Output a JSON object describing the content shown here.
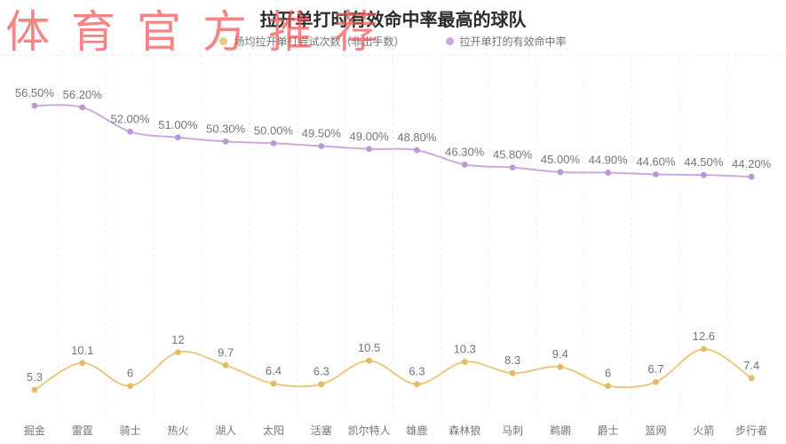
{
  "watermark": "体育官方推荐",
  "header": {
    "title": "拉开单打时有效命中率最高的球队"
  },
  "chart_data": {
    "type": "line",
    "title": "拉开单打时有效命中率最高的球队",
    "legend_position": "top",
    "grid": "vertical-dashed",
    "data_labels": "all-points",
    "background": "#ffffff",
    "categories": [
      "掘金",
      "雷霆",
      "骑士",
      "热火",
      "湖人",
      "太阳",
      "活塞",
      "凯尔特人",
      "雄鹿",
      "森林狼",
      "马刺",
      "鹈鹕",
      "爵士",
      "篮网",
      "火箭",
      "步行者"
    ],
    "series": [
      {
        "name": "场均拉开单打尝试次数（非出手数）",
        "type": "line",
        "smooth": true,
        "color": "#ecc87d",
        "marker_color": "#e5ba64",
        "values": [
          5.3,
          10.1,
          6,
          12,
          9.7,
          6.4,
          6.3,
          10.5,
          6.3,
          10.3,
          8.3,
          9.4,
          6,
          6.7,
          12.6,
          7.4
        ],
        "labels": [
          "5.3",
          "10.1",
          "6",
          "12",
          "9.7",
          "6.4",
          "6.3",
          "10.5",
          "6.3",
          "10.3",
          "8.3",
          "9.4",
          "6",
          "6.7",
          "12.6",
          "7.4"
        ]
      },
      {
        "name": "拉开单打的有效命中率",
        "type": "line",
        "smooth": true,
        "color": "#cbaade",
        "marker_color": "#bc97d5",
        "values": [
          56.5,
          56.2,
          52.0,
          51.0,
          50.3,
          50.0,
          49.5,
          49.0,
          48.8,
          46.3,
          45.8,
          45.0,
          44.9,
          44.6,
          44.5,
          44.2
        ],
        "labels": [
          "56.50%",
          "56.20%",
          "52.00%",
          "51.00%",
          "50.30%",
          "50.00%",
          "49.50%",
          "49.00%",
          "48.80%",
          "46.30%",
          "45.80%",
          "45.00%",
          "44.90%",
          "44.60%",
          "44.50%",
          "44.20%"
        ]
      }
    ],
    "styles": {
      "title_color": "#2b2b2b",
      "label_color": "#757575",
      "axis_label_color": "#757575",
      "grid_color": "#e9e9e9",
      "watermark_color": "#f15656"
    }
  }
}
